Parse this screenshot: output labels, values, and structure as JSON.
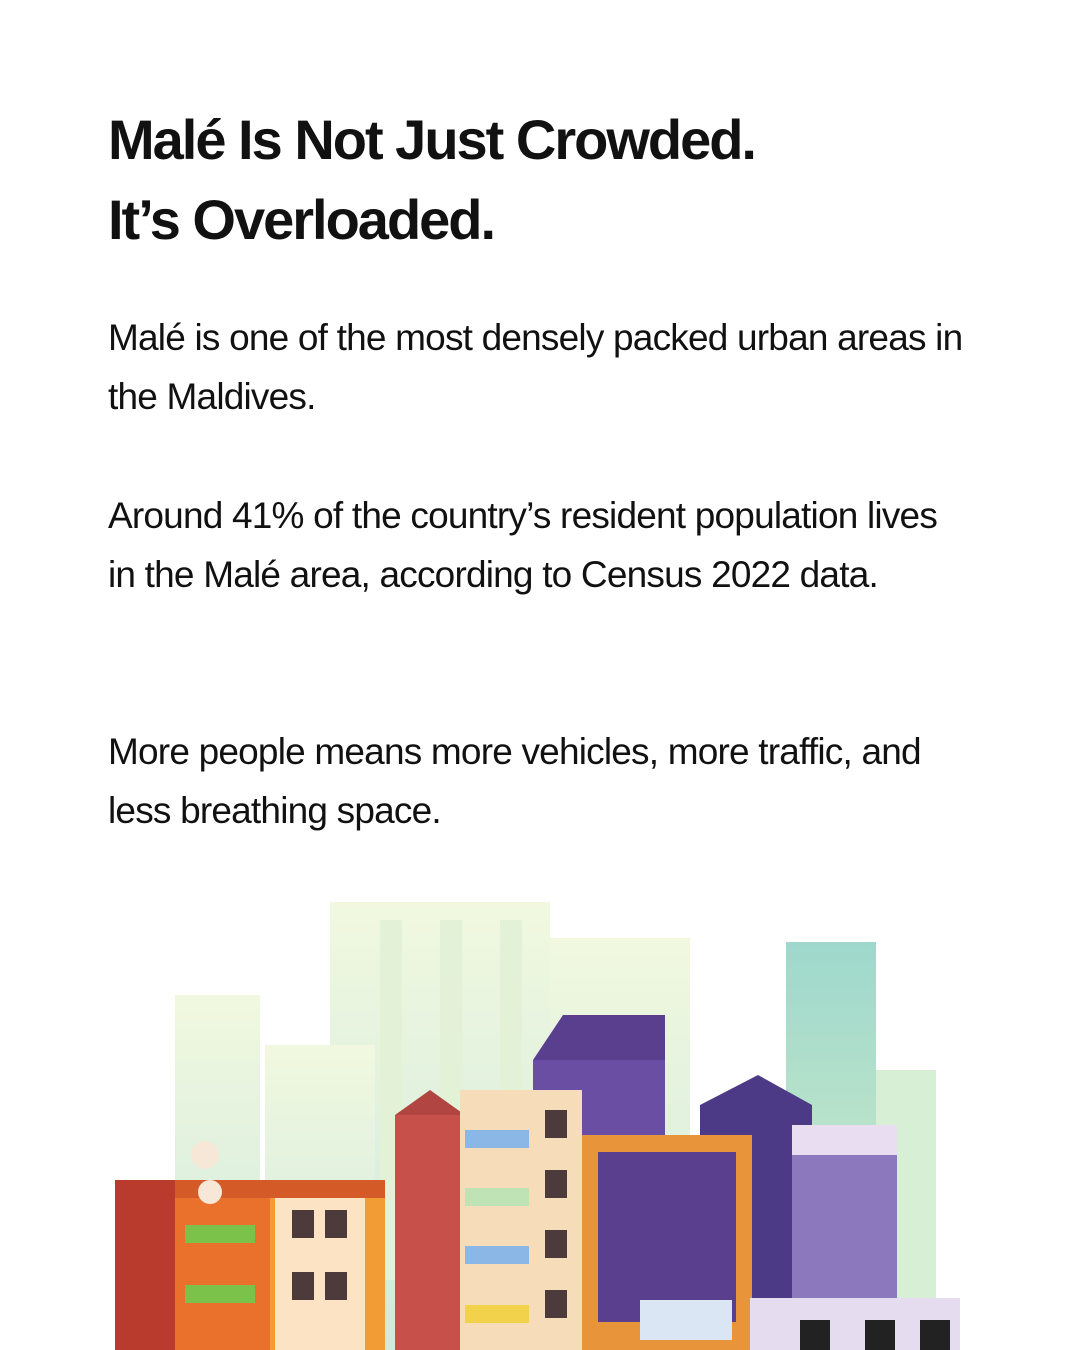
{
  "header": {
    "title_lines": [
      "Malé Is Not Just Crowded.",
      "It’s Overloaded."
    ]
  },
  "paragraphs": [
    "Malé is one of the most densely packed urban areas in the Maldives.",
    "Around 41% of the country’s resident population lives in the Malé area, according to Census 2022 data.",
    "More people means more vehicles, more traffic, and less breathing space."
  ]
}
